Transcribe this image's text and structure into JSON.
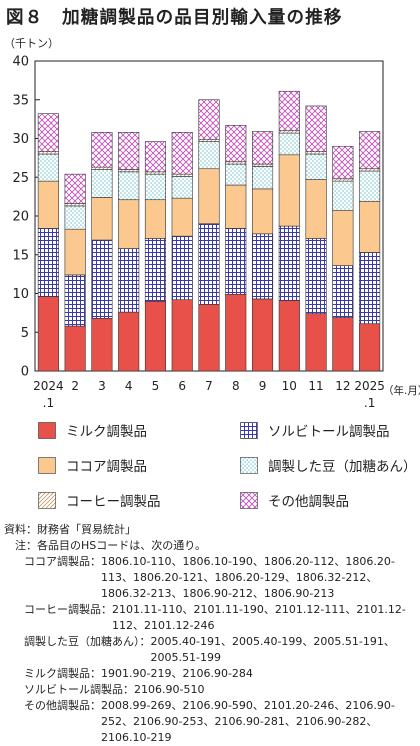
{
  "title": "図８　加糖調製品の品目別輸入量の推移",
  "chart_data": {
    "type": "bar",
    "stacked": true,
    "unit_label": "（千トン）",
    "axis_suffix": "（年.月）",
    "ylim": [
      0,
      40
    ],
    "yticks": [
      "0",
      "5",
      "10",
      "15",
      "20",
      "25",
      "30",
      "35",
      "40"
    ],
    "grid": false,
    "categories": [
      {
        "top": "2024",
        "bottom": ".1"
      },
      {
        "top": "2",
        "bottom": ""
      },
      {
        "top": "3",
        "bottom": ""
      },
      {
        "top": "4",
        "bottom": ""
      },
      {
        "top": "5",
        "bottom": ""
      },
      {
        "top": "6",
        "bottom": ""
      },
      {
        "top": "7",
        "bottom": ""
      },
      {
        "top": "8",
        "bottom": ""
      },
      {
        "top": "9",
        "bottom": ""
      },
      {
        "top": "10",
        "bottom": ""
      },
      {
        "top": "11",
        "bottom": ""
      },
      {
        "top": "12",
        "bottom": ""
      },
      {
        "top": "2025",
        "bottom": ".1"
      }
    ],
    "series": [
      {
        "name": "ミルク調製品",
        "pattern": "solid-red",
        "color": "#e8504a",
        "values": [
          9.6,
          5.8,
          6.8,
          7.6,
          9.0,
          9.2,
          8.6,
          9.9,
          9.3,
          9.1,
          7.4,
          6.9,
          6.1
        ]
      },
      {
        "name": "ソルビトール調製品",
        "pattern": "grid-purple",
        "color": "#3a3aa8",
        "values": [
          8.8,
          6.6,
          10.1,
          8.2,
          8.1,
          8.2,
          10.4,
          8.5,
          8.4,
          9.6,
          9.7,
          6.7,
          9.2
        ]
      },
      {
        "name": "ココア調製品",
        "pattern": "solid-orange",
        "color": "#fbc88f",
        "values": [
          6.1,
          5.9,
          5.5,
          6.3,
          5.0,
          4.9,
          7.1,
          5.6,
          5.8,
          9.2,
          7.6,
          7.1,
          6.6
        ]
      },
      {
        "name": "調製した豆（加糖あん）",
        "pattern": "dots-teal",
        "color": "#2aa6b5",
        "values": [
          3.5,
          3.0,
          3.6,
          3.6,
          3.3,
          2.8,
          3.5,
          2.7,
          2.9,
          2.8,
          3.3,
          3.8,
          3.9
        ]
      },
      {
        "name": "コーヒー調製品",
        "pattern": "hatch-tan",
        "color": "#c89a6a",
        "values": [
          0.3,
          0.3,
          0.3,
          0.3,
          0.3,
          0.3,
          0.3,
          0.3,
          0.3,
          0.3,
          0.3,
          0.3,
          0.3
        ]
      },
      {
        "name": "その他調製品",
        "pattern": "cross-magenta",
        "color": "#c050b8",
        "values": [
          4.9,
          3.8,
          4.5,
          4.8,
          3.9,
          5.4,
          5.1,
          4.7,
          4.2,
          5.1,
          5.9,
          4.2,
          4.8
        ]
      }
    ]
  },
  "legend": [
    {
      "label": "ミルク調製品",
      "pattern": "solid-red"
    },
    {
      "label": "ソルビトール調製品",
      "pattern": "grid-purple"
    },
    {
      "label": "ココア調製品",
      "pattern": "solid-orange"
    },
    {
      "label": "調製した豆（加糖あん）",
      "pattern": "dots-teal"
    },
    {
      "label": "コーヒー調製品",
      "pattern": "hatch-tan"
    },
    {
      "label": "その他調製品",
      "pattern": "cross-magenta"
    }
  ],
  "notes": {
    "source_key": "資料：",
    "source_val": "財務省「貿易統計」",
    "note_key": "　注：",
    "note_val": "各品目のHSコードは、次の通り。",
    "codes": [
      {
        "cat": "ココア調製品：",
        "codes": "1806.10-110、1806.10-190、1806.20-112、1806.20-113、1806.20-121、1806.20-129、1806.32-212、1806.32-213、1806.90-212、1806.90-213"
      },
      {
        "cat": "コーヒー調製品：",
        "codes": "2101.11-110、2101.11-190、2101.12-111、2101.12-112、2101.12-246"
      },
      {
        "cat": "調製した豆（加糖あん）：",
        "codes": "2005.40-191、2005.40-199、2005.51-191、2005.51-199"
      },
      {
        "cat": "ミルク調製品：",
        "codes": "1901.90-219、2106.90-284"
      },
      {
        "cat": "ソルビトール調製品：",
        "codes": "2106.90-510"
      },
      {
        "cat": "その他調製品：",
        "codes": "2008.99-269、2106.90-590、2101.20-246、2106.90-252、2106.90-253、2106.90-281、2106.90-282、2106.10-219"
      }
    ]
  }
}
